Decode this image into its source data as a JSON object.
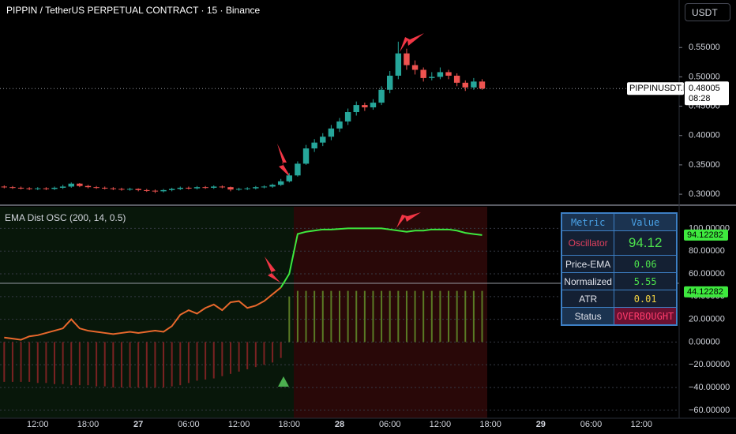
{
  "header": {
    "title": "PIPPIN / TetherUS PERPETUAL CONTRACT · 15 · Binance",
    "currency": "USDT"
  },
  "table": {
    "header": [
      "Metric",
      "Value"
    ],
    "rows": [
      [
        "Oscillator",
        "94.12"
      ],
      [
        "Price-EMA",
        "0.06"
      ],
      [
        "Normalized",
        "5.55"
      ],
      [
        "ATR",
        "0.01"
      ],
      [
        "Status",
        "OVERBOUGHT"
      ]
    ]
  },
  "chart_data": [
    {
      "type": "candlestick",
      "categories": [
        null,
        null,
        null,
        null,
        "12:00",
        null,
        null,
        null,
        null,
        null,
        "18:00",
        null,
        null,
        null,
        null,
        null,
        "27",
        null,
        null,
        null,
        null,
        null,
        "06:00",
        null,
        null,
        null,
        null,
        null,
        "12:00",
        null,
        null,
        null,
        null,
        null,
        "18:00",
        null,
        null,
        null,
        null,
        null,
        "28",
        null,
        null,
        null,
        null,
        null,
        "06:00",
        null,
        null,
        null,
        null,
        null,
        "12:00",
        null,
        null,
        null,
        null,
        null,
        "18:00",
        null,
        null,
        null,
        null,
        null,
        "29",
        null,
        null,
        null,
        null,
        null,
        "06:00",
        null,
        null,
        null,
        null,
        null,
        "12:00",
        null,
        null,
        null,
        null
      ],
      "open": [
        0.313,
        0.312,
        0.311,
        0.31,
        0.309,
        0.31,
        0.309,
        0.311,
        0.313,
        0.318,
        0.314,
        0.312,
        0.311,
        0.31,
        0.309,
        0.308,
        0.309,
        0.307,
        0.306,
        0.305,
        0.307,
        0.309,
        0.311,
        0.31,
        0.312,
        0.311,
        0.313,
        0.312,
        0.308,
        0.309,
        0.31,
        0.312,
        0.313,
        0.316,
        0.322,
        0.332,
        0.352,
        0.378,
        0.388,
        0.398,
        0.412,
        0.424,
        0.44,
        0.452,
        0.448,
        0.456,
        0.478,
        0.502,
        0.54,
        0.52,
        0.512,
        0.498,
        0.5,
        0.508,
        0.502,
        0.49,
        0.482,
        0.492,
        null,
        null,
        null,
        null,
        null,
        null,
        null,
        null,
        null,
        null,
        null,
        null,
        null,
        null,
        null,
        null,
        null,
        null,
        null,
        null,
        null,
        null,
        null
      ],
      "high": [
        0.315,
        0.314,
        0.313,
        0.312,
        0.312,
        0.312,
        0.313,
        0.316,
        0.32,
        0.319,
        0.316,
        0.314,
        0.313,
        0.312,
        0.311,
        0.311,
        0.31,
        0.309,
        0.308,
        0.309,
        0.311,
        0.313,
        0.313,
        0.314,
        0.314,
        0.315,
        0.315,
        0.313,
        0.311,
        0.312,
        0.314,
        0.315,
        0.318,
        0.326,
        0.336,
        0.356,
        0.384,
        0.394,
        0.404,
        0.418,
        0.43,
        0.446,
        0.458,
        0.456,
        0.462,
        0.484,
        0.51,
        0.56,
        0.548,
        0.528,
        0.516,
        0.508,
        0.516,
        0.512,
        0.506,
        0.494,
        0.498,
        0.496,
        null,
        null,
        null,
        null,
        null,
        null,
        null,
        null,
        null,
        null,
        null,
        null,
        null,
        null,
        null,
        null,
        null,
        null,
        null,
        null,
        null,
        null,
        null
      ],
      "low": [
        0.31,
        0.309,
        0.308,
        0.307,
        0.307,
        0.307,
        0.307,
        0.309,
        0.311,
        0.312,
        0.31,
        0.309,
        0.308,
        0.307,
        0.306,
        0.306,
        0.305,
        0.304,
        0.302,
        0.303,
        0.305,
        0.307,
        0.308,
        0.308,
        0.309,
        0.309,
        0.31,
        0.305,
        0.306,
        0.307,
        0.308,
        0.31,
        0.311,
        0.314,
        0.32,
        0.33,
        0.35,
        0.372,
        0.382,
        0.392,
        0.406,
        0.418,
        0.434,
        0.442,
        0.444,
        0.452,
        0.472,
        0.496,
        0.512,
        0.504,
        0.492,
        0.494,
        0.496,
        0.496,
        0.484,
        0.476,
        0.478,
        0.478,
        null,
        null,
        null,
        null,
        null,
        null,
        null,
        null,
        null,
        null,
        null,
        null,
        null,
        null,
        null,
        null,
        null,
        null,
        null,
        null,
        null,
        null,
        null
      ],
      "close": [
        0.312,
        0.311,
        0.31,
        0.309,
        0.31,
        0.309,
        0.311,
        0.313,
        0.318,
        0.314,
        0.312,
        0.311,
        0.31,
        0.309,
        0.308,
        0.309,
        0.307,
        0.306,
        0.305,
        0.307,
        0.309,
        0.311,
        0.31,
        0.312,
        0.311,
        0.313,
        0.312,
        0.308,
        0.309,
        0.31,
        0.312,
        0.313,
        0.316,
        0.322,
        0.332,
        0.352,
        0.378,
        0.388,
        0.398,
        0.412,
        0.424,
        0.44,
        0.452,
        0.448,
        0.456,
        0.478,
        0.502,
        0.54,
        0.52,
        0.512,
        0.498,
        0.5,
        0.508,
        0.502,
        0.49,
        0.482,
        0.492,
        0.48,
        null,
        null,
        null,
        null,
        null,
        null,
        null,
        null,
        null,
        null,
        null,
        null,
        null,
        null,
        null,
        null,
        null,
        null,
        null,
        null,
        null,
        null,
        null
      ],
      "up_color": "#26a69a",
      "down_color": "#ef5350",
      "ylim": [
        0.284,
        0.631
      ],
      "yticks": [
        {
          "value": 0.3,
          "label": "0.30000"
        },
        {
          "value": 0.35,
          "label": "0.35000"
        },
        {
          "value": 0.4,
          "label": "0.40000"
        },
        {
          "value": 0.45,
          "label": "0.45000"
        },
        {
          "value": 0.5,
          "label": "0.50000"
        },
        {
          "value": 0.55,
          "label": "0.55000"
        }
      ],
      "last_price": 0.48005,
      "countdown": "08:28",
      "symbol": "PIPPINUSDT.P"
    },
    {
      "type": "line",
      "title": "EMA Dist OSC (200, 14, 0.5)",
      "series": [
        {
          "color": "#e8682c",
          "values": [
            4,
            3,
            2,
            5,
            6,
            8,
            10,
            12,
            20,
            12,
            10,
            9,
            8,
            7,
            8,
            9,
            8,
            9,
            10,
            9,
            14,
            24,
            28,
            25,
            30,
            33,
            28,
            35,
            36,
            30,
            32,
            36,
            42,
            48,
            null,
            null,
            null,
            null,
            null,
            null,
            null,
            null,
            null,
            null,
            null,
            null,
            null,
            null,
            null,
            null,
            null,
            null,
            null,
            null,
            null,
            null,
            null,
            null,
            null,
            null,
            null,
            null,
            null,
            null,
            null,
            null,
            null,
            null,
            null,
            null,
            null,
            null,
            null,
            null,
            null,
            null,
            null,
            null,
            null,
            null,
            null
          ]
        },
        {
          "color": "#3ee83e",
          "values": [
            null,
            null,
            null,
            null,
            null,
            null,
            null,
            null,
            null,
            null,
            null,
            null,
            null,
            null,
            null,
            null,
            null,
            null,
            null,
            null,
            null,
            null,
            null,
            null,
            null,
            null,
            null,
            null,
            null,
            null,
            null,
            null,
            null,
            48,
            60,
            95,
            97,
            98,
            99,
            99,
            99.5,
            100,
            100,
            100,
            100,
            100,
            99,
            98,
            97,
            98,
            98,
            99,
            99,
            99,
            98,
            96,
            95,
            94.12,
            null,
            null,
            null,
            null,
            null,
            null,
            null,
            null,
            null,
            null,
            null,
            null,
            null,
            null,
            null,
            null,
            null,
            null,
            null,
            null,
            null,
            null,
            null
          ]
        },
        {
          "type": "bar",
          "color": "#5a7a24",
          "neg_color": "#7a2222",
          "values": [
            -35,
            -35,
            -35,
            -35,
            -36,
            -36,
            -37,
            -37,
            -38,
            -38,
            -38,
            -39,
            -39,
            -40,
            -40,
            -40,
            -40,
            -40,
            -40,
            -40,
            -39,
            -38,
            -36,
            -34,
            -33,
            -32,
            -30,
            -28,
            -26,
            -24,
            -22,
            -20,
            -18,
            -14,
            40,
            45,
            45,
            45,
            45,
            45,
            45,
            45,
            45,
            45,
            45,
            45,
            45,
            45,
            45,
            45,
            45,
            45,
            45,
            45,
            45,
            45,
            45,
            45,
            null,
            null,
            null,
            null,
            null,
            null,
            null,
            null,
            null,
            null,
            null,
            null,
            null,
            null,
            null,
            null,
            null,
            null,
            null,
            null,
            null,
            null,
            null
          ]
        }
      ],
      "ylim": [
        -67,
        119
      ],
      "yticks": [
        {
          "value": -60,
          "label": "−60.00000"
        },
        {
          "value": -40,
          "label": "−40.00000"
        },
        {
          "value": -20,
          "label": "−20.00000"
        },
        {
          "value": 0,
          "label": "0.00000"
        },
        {
          "value": 20,
          "label": "20.00000"
        },
        {
          "value": 40,
          "label": "40.00000"
        },
        {
          "value": 60,
          "label": "60.00000"
        },
        {
          "value": 80,
          "label": "80.00000"
        },
        {
          "value": 100,
          "label": "100.00000"
        }
      ],
      "grid": true,
      "last_labels": [
        94.12282,
        44.12282
      ],
      "label_color": "#3ee83e"
    }
  ]
}
